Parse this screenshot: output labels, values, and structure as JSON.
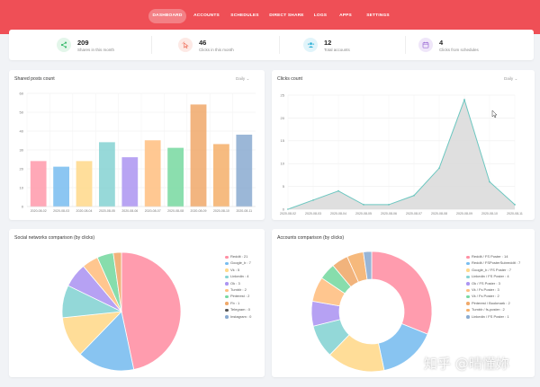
{
  "nav": {
    "items": [
      {
        "label": "DASHBOARD",
        "active": true
      },
      {
        "label": "ACCOUNTS"
      },
      {
        "label": "SCHEDULES"
      },
      {
        "label": "DIRECT SHARE"
      },
      {
        "label": "LOGS"
      },
      {
        "label": "APPS"
      },
      {
        "label": "SETTINGS"
      }
    ]
  },
  "stats": [
    {
      "value": "209",
      "label": "Shares in this month",
      "icon": "share-icon",
      "color": "#3dbb6f",
      "bg": "#e3f6ea"
    },
    {
      "value": "46",
      "label": "Clicks in this month",
      "icon": "cursor-click-icon",
      "color": "#ef6c57",
      "bg": "#fde9e5"
    },
    {
      "value": "12",
      "label": "Total accounts",
      "icon": "users-icon",
      "color": "#35b4d8",
      "bg": "#e1f4fa"
    },
    {
      "value": "4",
      "label": "Clicks from schedules",
      "icon": "calendar-icon",
      "color": "#9b6bd4",
      "bg": "#efe6f9"
    }
  ],
  "cards": {
    "shared_posts": {
      "title": "Shared posts count",
      "period": "Daily"
    },
    "clicks": {
      "title": "Clicks count",
      "period": "Daily"
    },
    "social_networks": {
      "title": "Social networks comparison (by clicks)"
    },
    "accounts": {
      "title": "Accounts comparison (by clicks)"
    }
  },
  "watermark": "知乎 @晴懂妳",
  "chart_data": [
    {
      "type": "bar",
      "title": "Shared posts count",
      "categories": [
        "2020-08-02",
        "2020-08-03",
        "2020-08-04",
        "2020-08-05",
        "2020-08-06",
        "2020-08-07",
        "2020-08-08",
        "2020-08-09",
        "2020-08-10",
        "2020-08-11"
      ],
      "values": [
        24,
        21,
        24,
        34,
        26,
        35,
        31,
        54,
        33,
        38
      ],
      "colors": [
        "#ff9aab",
        "#78bdf0",
        "#ffd98a",
        "#85d3d3",
        "#ac95f2",
        "#ffbf80",
        "#77d9a1",
        "#f0a96a",
        "#f5b06a",
        "#8aabd1"
      ],
      "ylim": [
        0,
        60
      ],
      "yticks": [
        0,
        10,
        20,
        30,
        40,
        50,
        60
      ],
      "grid": true
    },
    {
      "type": "area",
      "title": "Clicks count",
      "categories": [
        "2020-08-02",
        "2020-08-03",
        "2020-08-04",
        "2020-08-05",
        "2020-08-06",
        "2020-08-07",
        "2020-08-08",
        "2020-08-09",
        "2020-08-10",
        "2020-08-11"
      ],
      "values": [
        0,
        2,
        4,
        1,
        1,
        3,
        9,
        24,
        6,
        1
      ],
      "ylim": [
        0,
        25
      ],
      "yticks": [
        0,
        5,
        10,
        15,
        20,
        25
      ],
      "line_color": "#6cc7c0",
      "fill_color": "#dcdcdc",
      "grid": true
    },
    {
      "type": "pie",
      "title": "Social networks comparison (by clicks)",
      "legend_position": "right",
      "slices": [
        {
          "label": "Reddit : 21",
          "value": 21,
          "color": "#ff8fa3"
        },
        {
          "label": "Google_b : 7",
          "value": 7,
          "color": "#78bdf0"
        },
        {
          "label": "Vk : 5",
          "value": 5,
          "color": "#ffd98a"
        },
        {
          "label": "Linkedin : 4",
          "value": 4,
          "color": "#85d3d3"
        },
        {
          "label": "Ok : 3",
          "value": 3,
          "color": "#ac95f2"
        },
        {
          "label": "Tumblr : 2",
          "value": 2,
          "color": "#ffbf80"
        },
        {
          "label": "Pinterest : 2",
          "value": 2,
          "color": "#77d9a1"
        },
        {
          "label": "Fb : 1",
          "value": 1,
          "color": "#f0a96a"
        },
        {
          "label": "Telegram : 0",
          "value": 0,
          "color": "#555555"
        },
        {
          "label": "Instagram : 0",
          "value": 0,
          "color": "#8aabd1"
        }
      ]
    },
    {
      "type": "pie",
      "donut": true,
      "title": "Accounts comparison (by clicks)",
      "legend_position": "right",
      "slices": [
        {
          "label": "Reddit / FS Poster : 14",
          "value": 14,
          "color": "#ff8fa3"
        },
        {
          "label": "Reddit / FSPosterSubreddit : 7",
          "value": 7,
          "color": "#78bdf0"
        },
        {
          "label": "Google_b / FS Poster : 7",
          "value": 7,
          "color": "#ffd98a"
        },
        {
          "label": "Linkedin / FS Poster : 4",
          "value": 4,
          "color": "#85d3d3"
        },
        {
          "label": "Ok / FS Poster : 3",
          "value": 3,
          "color": "#ac95f2"
        },
        {
          "label": "Vk / Fs Poster : 3",
          "value": 3,
          "color": "#ffbf80"
        },
        {
          "label": "Vk / Fs Poster : 2",
          "value": 2,
          "color": "#77d9a1"
        },
        {
          "label": "Pinterest / Bookmark : 2",
          "value": 2,
          "color": "#f0a96a"
        },
        {
          "label": "Tumblr / fs-poster : 2",
          "value": 2,
          "color": "#f5b06a"
        },
        {
          "label": "Linkedin / FS Poster : 1",
          "value": 1,
          "color": "#8aabd1"
        }
      ]
    }
  ]
}
